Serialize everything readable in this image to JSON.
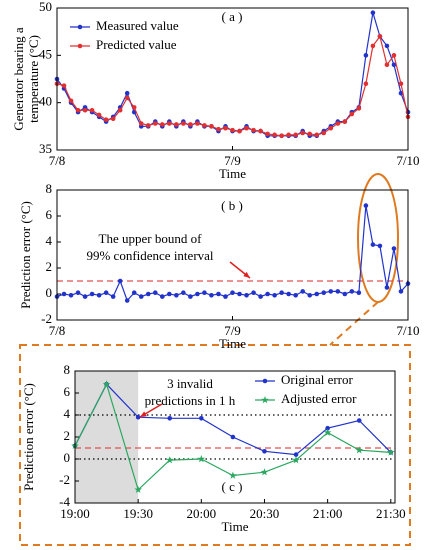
{
  "chart_data": [
    {
      "type": "line",
      "title": "( a )",
      "xlabel": "Time",
      "ylabel": [
        "Generator bearing a",
        "temperature (°C)"
      ],
      "xlim": [
        0,
        2
      ],
      "xticks": [
        {
          "value": 0,
          "label": "7/8"
        },
        {
          "value": 1,
          "label": "7/9"
        },
        {
          "value": 2,
          "label": "7/10"
        }
      ],
      "ylim": [
        35,
        50
      ],
      "yticks": [
        35,
        40,
        45,
        50
      ],
      "x": [
        0,
        0.04,
        0.08,
        0.12,
        0.16,
        0.2,
        0.24,
        0.28,
        0.32,
        0.36,
        0.4,
        0.44,
        0.48,
        0.52,
        0.56,
        0.6,
        0.64,
        0.68,
        0.72,
        0.76,
        0.8,
        0.84,
        0.88,
        0.92,
        0.96,
        1,
        1.04,
        1.08,
        1.12,
        1.16,
        1.2,
        1.24,
        1.28,
        1.32,
        1.36,
        1.4,
        1.44,
        1.48,
        1.52,
        1.56,
        1.6,
        1.64,
        1.68,
        1.72,
        1.76,
        1.8,
        1.84,
        1.88,
        1.92,
        1.96,
        2
      ],
      "series": [
        {
          "name": "Measured value",
          "color": "#2233cc",
          "marker": "circle",
          "values": [
            42.5,
            41.5,
            40,
            39,
            39.5,
            39,
            38.5,
            38,
            38.5,
            39.5,
            41,
            39,
            37.5,
            37.5,
            38,
            37.5,
            38,
            37.5,
            38,
            37.5,
            38,
            37.5,
            37.5,
            37,
            37.5,
            37,
            37,
            37.5,
            37,
            37,
            36.5,
            36.5,
            36.5,
            36.5,
            36.5,
            37,
            36.5,
            36.5,
            37,
            37.5,
            38,
            38,
            39,
            39.5,
            45,
            49.5,
            47,
            46,
            44,
            41,
            39
          ]
        },
        {
          "name": "Predicted value",
          "color": "#e03030",
          "marker": "circle",
          "values": [
            42,
            41.8,
            40.2,
            39.2,
            39.2,
            39.2,
            38.7,
            38.2,
            38.3,
            39.2,
            40.5,
            39.5,
            37.8,
            37.6,
            37.8,
            37.7,
            37.8,
            37.7,
            37.8,
            37.7,
            37.8,
            37.6,
            37.5,
            37.2,
            37.3,
            37.1,
            37,
            37.3,
            37.1,
            37,
            36.7,
            36.6,
            36.5,
            36.6,
            36.6,
            36.8,
            36.7,
            36.6,
            36.8,
            37.3,
            37.8,
            38,
            38.8,
            39.4,
            42,
            46,
            47,
            44,
            45,
            42,
            38.5
          ]
        }
      ]
    },
    {
      "type": "line",
      "title": "( b )",
      "xlabel": "Time",
      "ylabel": [
        "Prediction error (°C)"
      ],
      "xlim": [
        0,
        2
      ],
      "xticks": [
        {
          "value": 0,
          "label": "7/8"
        },
        {
          "value": 1,
          "label": "7/9"
        },
        {
          "value": 2,
          "label": "7/10"
        }
      ],
      "ylim": [
        -2,
        8
      ],
      "yticks": [
        -2,
        0,
        2,
        4,
        6,
        8
      ],
      "hlines": [
        {
          "value": 1,
          "color": "#e05050",
          "style": "dashed"
        }
      ],
      "annotation": [
        "The upper bound of",
        "99% confidence interval"
      ],
      "x": [
        0,
        0.04,
        0.08,
        0.12,
        0.16,
        0.2,
        0.24,
        0.28,
        0.32,
        0.36,
        0.4,
        0.44,
        0.48,
        0.52,
        0.56,
        0.6,
        0.64,
        0.68,
        0.72,
        0.76,
        0.8,
        0.84,
        0.88,
        0.92,
        0.96,
        1,
        1.04,
        1.08,
        1.12,
        1.16,
        1.2,
        1.24,
        1.28,
        1.32,
        1.36,
        1.4,
        1.44,
        1.48,
        1.52,
        1.56,
        1.6,
        1.64,
        1.68,
        1.72,
        1.76,
        1.8,
        1.84,
        1.88,
        1.92,
        1.96,
        2
      ],
      "series": [
        {
          "color": "#2233cc",
          "marker": "circle",
          "values": [
            -0.2,
            0,
            -0.1,
            0.1,
            -0.2,
            0,
            -0.1,
            0.1,
            -0.2,
            1,
            -0.5,
            0.1,
            -0.2,
            0,
            0.1,
            -0.2,
            0,
            -0.1,
            0.1,
            -0.2,
            0,
            0.1,
            -0.1,
            0,
            -0.2,
            0.1,
            0,
            -0.1,
            0.1,
            -0.2,
            0,
            -0.1,
            0.1,
            0,
            -0.1,
            0.2,
            -0.1,
            0,
            0.1,
            0.2,
            0.2,
            0,
            0.2,
            0.1,
            6.8,
            3.8,
            3.7,
            0.5,
            3.5,
            0.2,
            0.8
          ]
        }
      ]
    },
    {
      "type": "line",
      "title": "( c )",
      "xlabel": "Time",
      "ylabel": [
        "Prediction error (°C)"
      ],
      "xlim": [
        0,
        152
      ],
      "xticks": [
        {
          "value": 0,
          "label": "19:00"
        },
        {
          "value": 30,
          "label": "19:30"
        },
        {
          "value": 60,
          "label": "20:00"
        },
        {
          "value": 90,
          "label": "20:30"
        },
        {
          "value": 120,
          "label": "21:00"
        },
        {
          "value": 150,
          "label": "21:30"
        }
      ],
      "ylim": [
        -4,
        8
      ],
      "yticks": [
        -4,
        -2,
        0,
        2,
        4,
        6,
        8
      ],
      "shade_xlim": [
        0,
        30
      ],
      "hlines": [
        {
          "value": 4,
          "color": "#000000",
          "style": "dotted"
        },
        {
          "value": 0,
          "color": "#000000",
          "style": "dotted"
        },
        {
          "value": 1,
          "color": "#e05050",
          "style": "dashed"
        }
      ],
      "annotation": [
        "3 invalid",
        "predictions in 1 h"
      ],
      "x": [
        0,
        15,
        30,
        45,
        60,
        75,
        90,
        105,
        120,
        135,
        150
      ],
      "series": [
        {
          "name": "Original error",
          "color": "#2233cc",
          "marker": "circle",
          "values": [
            1.2,
            6.8,
            3.8,
            3.7,
            3.7,
            2.0,
            0.7,
            0.4,
            2.8,
            3.5,
            0.6
          ]
        },
        {
          "name": "Adjusted error",
          "color": "#2aa860",
          "marker": "star",
          "values": [
            1.2,
            6.8,
            -2.8,
            -0.1,
            0,
            -1.5,
            -1.2,
            -0.1,
            2.4,
            0.8,
            0.6
          ]
        }
      ]
    }
  ]
}
